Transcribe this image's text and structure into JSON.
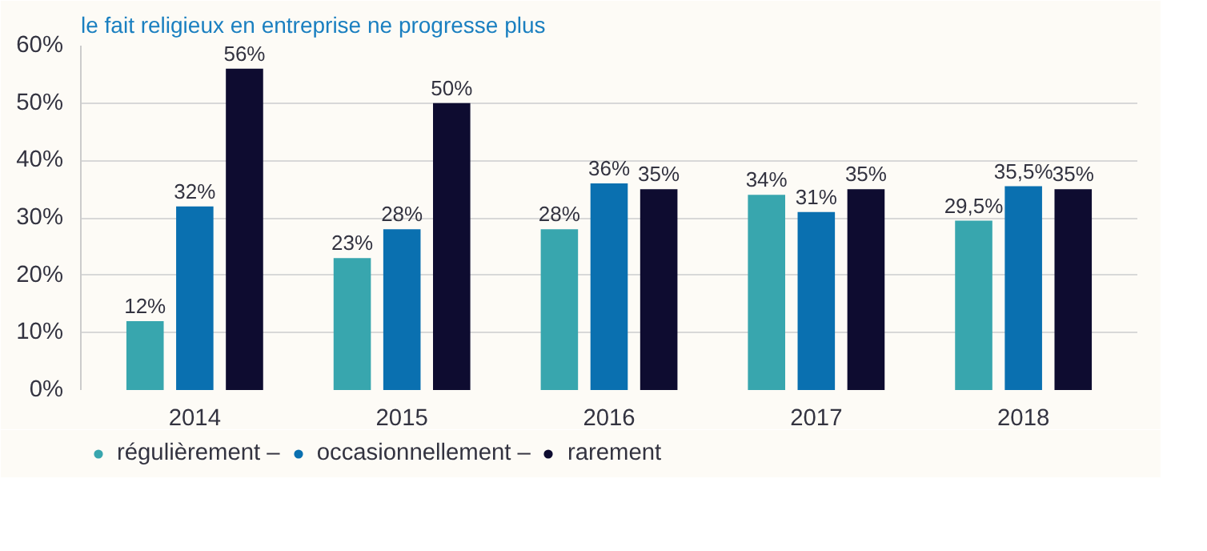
{
  "chart_data": {
    "type": "bar",
    "title": "le fait religieux en entreprise ne progresse plus",
    "categories": [
      "2014",
      "2015",
      "2016",
      "2017",
      "2018"
    ],
    "series": [
      {
        "name": "régulièrement –",
        "color": "#38a6ae",
        "values": [
          12,
          23,
          28,
          34,
          29.5
        ],
        "value_labels": [
          "12%",
          "23%",
          "28%",
          "34%",
          "29,5%"
        ]
      },
      {
        "name": "occasionnellement –",
        "color": "#0a70b0",
        "values": [
          32,
          28,
          36,
          31,
          35.5
        ],
        "value_labels": [
          "32%",
          "28%",
          "36%",
          "31%",
          "35,5%"
        ]
      },
      {
        "name": "rarement",
        "color": "#0e0c30",
        "values": [
          56,
          50,
          35,
          35,
          35
        ],
        "value_labels": [
          "56%",
          "50%",
          "35%",
          "35%",
          "35%"
        ]
      }
    ],
    "ylim": [
      0,
      60
    ],
    "yticks": [
      {
        "value": 0,
        "label": "0%"
      },
      {
        "value": 10,
        "label": "10%"
      },
      {
        "value": 20,
        "label": "20%"
      },
      {
        "value": 30,
        "label": "30%"
      },
      {
        "value": 40,
        "label": "40%"
      },
      {
        "value": 50,
        "label": "50%"
      },
      {
        "value": 60,
        "label": "60%"
      }
    ],
    "grid": "y",
    "legend": "bottom left"
  }
}
